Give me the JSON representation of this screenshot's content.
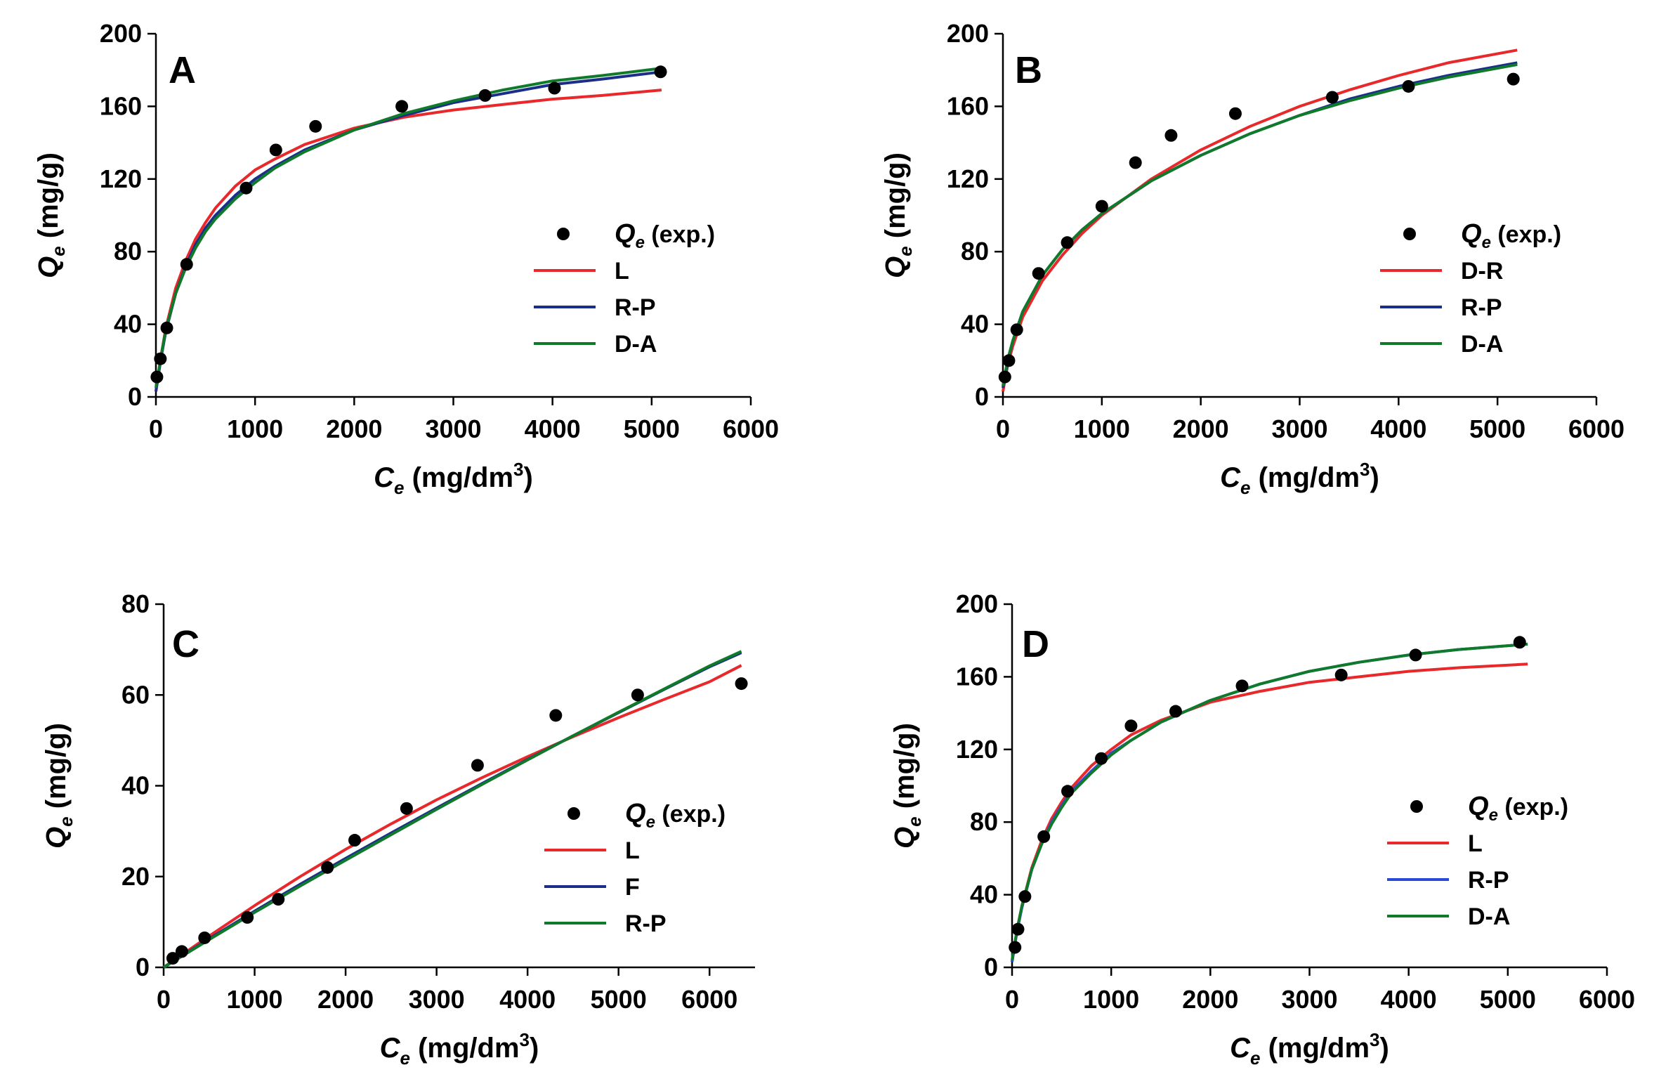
{
  "chart_data": [
    {
      "panel": "A",
      "type": "scatter",
      "xlabel": "C_e (mg/dm^3)",
      "ylabel": "Q_e (mg/g)",
      "xlim": [
        0,
        6000
      ],
      "ylim": [
        0,
        200
      ],
      "xticks": [
        0,
        1000,
        2000,
        3000,
        4000,
        5000,
        6000
      ],
      "yticks": [
        0,
        40,
        80,
        120,
        160,
        200
      ],
      "points_label": "exp.",
      "points": [
        [
          10,
          11
        ],
        [
          45,
          21
        ],
        [
          110,
          38
        ],
        [
          310,
          73
        ],
        [
          910,
          115
        ],
        [
          1210,
          136
        ],
        [
          1610,
          149
        ],
        [
          2480,
          160
        ],
        [
          3320,
          166
        ],
        [
          4020,
          170
        ],
        [
          5090,
          179
        ]
      ],
      "series": [
        {
          "name": "L",
          "color": "#e8282a",
          "values": [
            [
              0,
              3
            ],
            [
              50,
              22
            ],
            [
              100,
              38
            ],
            [
              200,
              60
            ],
            [
              300,
              75
            ],
            [
              400,
              87
            ],
            [
              500,
              96
            ],
            [
              600,
              104
            ],
            [
              800,
              116
            ],
            [
              1000,
              125
            ],
            [
              1200,
              131
            ],
            [
              1500,
              139
            ],
            [
              2000,
              148
            ],
            [
              2500,
              154
            ],
            [
              3000,
              158
            ],
            [
              3500,
              161
            ],
            [
              4000,
              164
            ],
            [
              4500,
              166
            ],
            [
              5100,
              169
            ]
          ]
        },
        {
          "name": "R-P",
          "color": "#1a2e8a",
          "values": [
            [
              0,
              3
            ],
            [
              50,
              21
            ],
            [
              100,
              36
            ],
            [
              200,
              57
            ],
            [
              300,
              72
            ],
            [
              400,
              84
            ],
            [
              500,
              93
            ],
            [
              600,
              100
            ],
            [
              800,
              111
            ],
            [
              1000,
              120
            ],
            [
              1200,
              127
            ],
            [
              1500,
              136
            ],
            [
              2000,
              147
            ],
            [
              2500,
              155
            ],
            [
              3000,
              162
            ],
            [
              3500,
              167
            ],
            [
              4000,
              172
            ],
            [
              4500,
              175
            ],
            [
              5100,
              179
            ]
          ]
        },
        {
          "name": "D-A",
          "color": "#0f7a2a",
          "values": [
            [
              0,
              5
            ],
            [
              50,
              22
            ],
            [
              100,
              37
            ],
            [
              200,
              57
            ],
            [
              300,
              71
            ],
            [
              400,
              82
            ],
            [
              500,
              91
            ],
            [
              600,
              98
            ],
            [
              800,
              109
            ],
            [
              1000,
              118
            ],
            [
              1200,
              126
            ],
            [
              1500,
              135
            ],
            [
              2000,
              147
            ],
            [
              2500,
              156
            ],
            [
              3000,
              163
            ],
            [
              3500,
              169
            ],
            [
              4000,
              174
            ],
            [
              4500,
              177
            ],
            [
              5100,
              181
            ]
          ]
        }
      ],
      "legend_position": "right"
    },
    {
      "panel": "B",
      "type": "scatter",
      "xlabel": "C_e (mg/dm^3)",
      "ylabel": "Q_e (mg/g)",
      "xlim": [
        0,
        6000
      ],
      "ylim": [
        0,
        200
      ],
      "xticks": [
        0,
        1000,
        2000,
        3000,
        4000,
        5000,
        6000
      ],
      "yticks": [
        0,
        40,
        80,
        120,
        160,
        200
      ],
      "points_label": "exp.",
      "points": [
        [
          20,
          11
        ],
        [
          60,
          20
        ],
        [
          140,
          37
        ],
        [
          360,
          68
        ],
        [
          650,
          85
        ],
        [
          1000,
          105
        ],
        [
          1340,
          129
        ],
        [
          1700,
          144
        ],
        [
          2350,
          156
        ],
        [
          3330,
          165
        ],
        [
          4100,
          171
        ],
        [
          5160,
          175
        ]
      ],
      "series": [
        {
          "name": "D-R",
          "color": "#e8282a",
          "values": [
            [
              0,
              3
            ],
            [
              50,
              18
            ],
            [
              100,
              28
            ],
            [
              200,
              44
            ],
            [
              400,
              64
            ],
            [
              600,
              78
            ],
            [
              800,
              90
            ],
            [
              1000,
              100
            ],
            [
              1500,
              120
            ],
            [
              2000,
              136
            ],
            [
              2500,
              149
            ],
            [
              3000,
              160
            ],
            [
              3500,
              169
            ],
            [
              4000,
              177
            ],
            [
              4500,
              184
            ],
            [
              5200,
              191
            ]
          ]
        },
        {
          "name": "R-P",
          "color": "#1a2e8a",
          "values": [
            [
              0,
              5
            ],
            [
              50,
              20
            ],
            [
              100,
              31
            ],
            [
              200,
              47
            ],
            [
              400,
              67
            ],
            [
              600,
              81
            ],
            [
              800,
              92
            ],
            [
              1000,
              101
            ],
            [
              1500,
              119
            ],
            [
              2000,
              133
            ],
            [
              2500,
              145
            ],
            [
              3000,
              155
            ],
            [
              3500,
              164
            ],
            [
              4000,
              171
            ],
            [
              4500,
              177
            ],
            [
              5200,
              184
            ]
          ]
        },
        {
          "name": "D-A",
          "color": "#0f7a2a",
          "values": [
            [
              0,
              6
            ],
            [
              50,
              21
            ],
            [
              100,
              31
            ],
            [
              200,
              47
            ],
            [
              400,
              67
            ],
            [
              600,
              81
            ],
            [
              800,
              92
            ],
            [
              1000,
              101
            ],
            [
              1500,
              119
            ],
            [
              2000,
              133
            ],
            [
              2500,
              145
            ],
            [
              3000,
              155
            ],
            [
              3500,
              163
            ],
            [
              4000,
              170
            ],
            [
              4500,
              176
            ],
            [
              5200,
              183
            ]
          ]
        }
      ],
      "legend_position": "right"
    },
    {
      "panel": "C",
      "type": "scatter",
      "xlabel": "C_e (mg/dm^3)",
      "ylabel": "Q_e (mg/g)",
      "xlim": [
        0,
        6500
      ],
      "ylim": [
        0,
        80
      ],
      "xticks": [
        0,
        1000,
        2000,
        3000,
        4000,
        5000,
        6000
      ],
      "yticks": [
        0,
        20,
        40,
        60,
        80
      ],
      "points_label": "exp.",
      "points": [
        [
          100,
          2
        ],
        [
          200,
          3.5
        ],
        [
          450,
          6.5
        ],
        [
          920,
          11
        ],
        [
          1260,
          15
        ],
        [
          1800,
          22
        ],
        [
          2100,
          28
        ],
        [
          2670,
          35
        ],
        [
          3450,
          44.5
        ],
        [
          4310,
          55.5
        ],
        [
          5210,
          60
        ],
        [
          6350,
          62.5
        ]
      ],
      "series": [
        {
          "name": "L",
          "color": "#e8282a",
          "values": [
            [
              0,
              0
            ],
            [
              500,
              6.9
            ],
            [
              1000,
              13.6
            ],
            [
              1500,
              20.0
            ],
            [
              2000,
              26.0
            ],
            [
              2500,
              31.6
            ],
            [
              3000,
              36.9
            ],
            [
              3500,
              41.8
            ],
            [
              4000,
              46.4
            ],
            [
              4500,
              50.8
            ],
            [
              5000,
              55.0
            ],
            [
              5500,
              59.0
            ],
            [
              6000,
              62.9
            ],
            [
              6350,
              66.5
            ]
          ]
        },
        {
          "name": "F",
          "color": "#1a2e8a",
          "values": [
            [
              0,
              0
            ],
            [
              500,
              6.3
            ],
            [
              1000,
              12.4
            ],
            [
              1500,
              18.3
            ],
            [
              2000,
              24.0
            ],
            [
              2500,
              29.6
            ],
            [
              3000,
              35.1
            ],
            [
              3500,
              40.5
            ],
            [
              4000,
              45.8
            ],
            [
              4500,
              51.0
            ],
            [
              5000,
              56.1
            ],
            [
              5500,
              61.2
            ],
            [
              6000,
              66.2
            ],
            [
              6350,
              69.3
            ]
          ]
        },
        {
          "name": "R-P",
          "color": "#0f7a2a",
          "values": [
            [
              0,
              0
            ],
            [
              500,
              6.1
            ],
            [
              1000,
              12.1
            ],
            [
              1500,
              17.9
            ],
            [
              2000,
              23.6
            ],
            [
              2500,
              29.2
            ],
            [
              3000,
              34.8
            ],
            [
              3500,
              40.3
            ],
            [
              4000,
              45.7
            ],
            [
              4500,
              51.0
            ],
            [
              5000,
              56.2
            ],
            [
              5500,
              61.3
            ],
            [
              6000,
              66.4
            ],
            [
              6350,
              69.6
            ]
          ]
        }
      ],
      "legend_position": "right"
    },
    {
      "panel": "D",
      "type": "scatter",
      "xlabel": "C_e (mg/dm^3)",
      "ylabel": "Q_e (mg/g)",
      "xlim": [
        0,
        6000
      ],
      "ylim": [
        0,
        200
      ],
      "xticks": [
        0,
        1000,
        2000,
        3000,
        4000,
        5000,
        6000
      ],
      "yticks": [
        0,
        40,
        80,
        120,
        160,
        200
      ],
      "points_label": "exp.",
      "points": [
        [
          30,
          11
        ],
        [
          60,
          21
        ],
        [
          130,
          39
        ],
        [
          320,
          72
        ],
        [
          560,
          97
        ],
        [
          900,
          115
        ],
        [
          1200,
          133
        ],
        [
          1650,
          141
        ],
        [
          2320,
          155
        ],
        [
          3320,
          161
        ],
        [
          4070,
          172
        ],
        [
          5120,
          179
        ]
      ],
      "series": [
        {
          "name": "L",
          "color": "#e8282a",
          "values": [
            [
              0,
              3
            ],
            [
              50,
              20
            ],
            [
              100,
              34
            ],
            [
              200,
              55
            ],
            [
              300,
              70
            ],
            [
              400,
              82
            ],
            [
              500,
              91
            ],
            [
              600,
              99
            ],
            [
              800,
              111
            ],
            [
              1000,
              120
            ],
            [
              1200,
              128
            ],
            [
              1500,
              136
            ],
            [
              2000,
              146
            ],
            [
              2500,
              152
            ],
            [
              3000,
              157
            ],
            [
              3500,
              160
            ],
            [
              4000,
              163
            ],
            [
              4500,
              165
            ],
            [
              5200,
              167
            ]
          ]
        },
        {
          "name": "R-P",
          "color": "#2a4ad6",
          "values": [
            [
              0,
              3
            ],
            [
              50,
              20
            ],
            [
              100,
              33
            ],
            [
              200,
              54
            ],
            [
              300,
              68
            ],
            [
              400,
              80
            ],
            [
              500,
              89
            ],
            [
              600,
              97
            ],
            [
              800,
              108
            ],
            [
              1000,
              118
            ],
            [
              1200,
              125
            ],
            [
              1500,
              135
            ],
            [
              2000,
              147
            ],
            [
              2500,
              156
            ],
            [
              3000,
              163
            ],
            [
              3500,
              168
            ],
            [
              4000,
              172
            ],
            [
              4500,
              175
            ],
            [
              5200,
              178
            ]
          ]
        },
        {
          "name": "D-A",
          "color": "#0f7a2a",
          "values": [
            [
              0,
              4
            ],
            [
              50,
              21
            ],
            [
              100,
              34
            ],
            [
              200,
              54
            ],
            [
              300,
              68
            ],
            [
              400,
              79
            ],
            [
              500,
              88
            ],
            [
              600,
              96
            ],
            [
              800,
              107
            ],
            [
              1000,
              117
            ],
            [
              1200,
              125
            ],
            [
              1500,
              135
            ],
            [
              2000,
              147
            ],
            [
              2500,
              156
            ],
            [
              3000,
              163
            ],
            [
              3500,
              168
            ],
            [
              4000,
              172
            ],
            [
              4500,
              175
            ],
            [
              5200,
              178
            ]
          ]
        }
      ],
      "legend_position": "right"
    }
  ]
}
